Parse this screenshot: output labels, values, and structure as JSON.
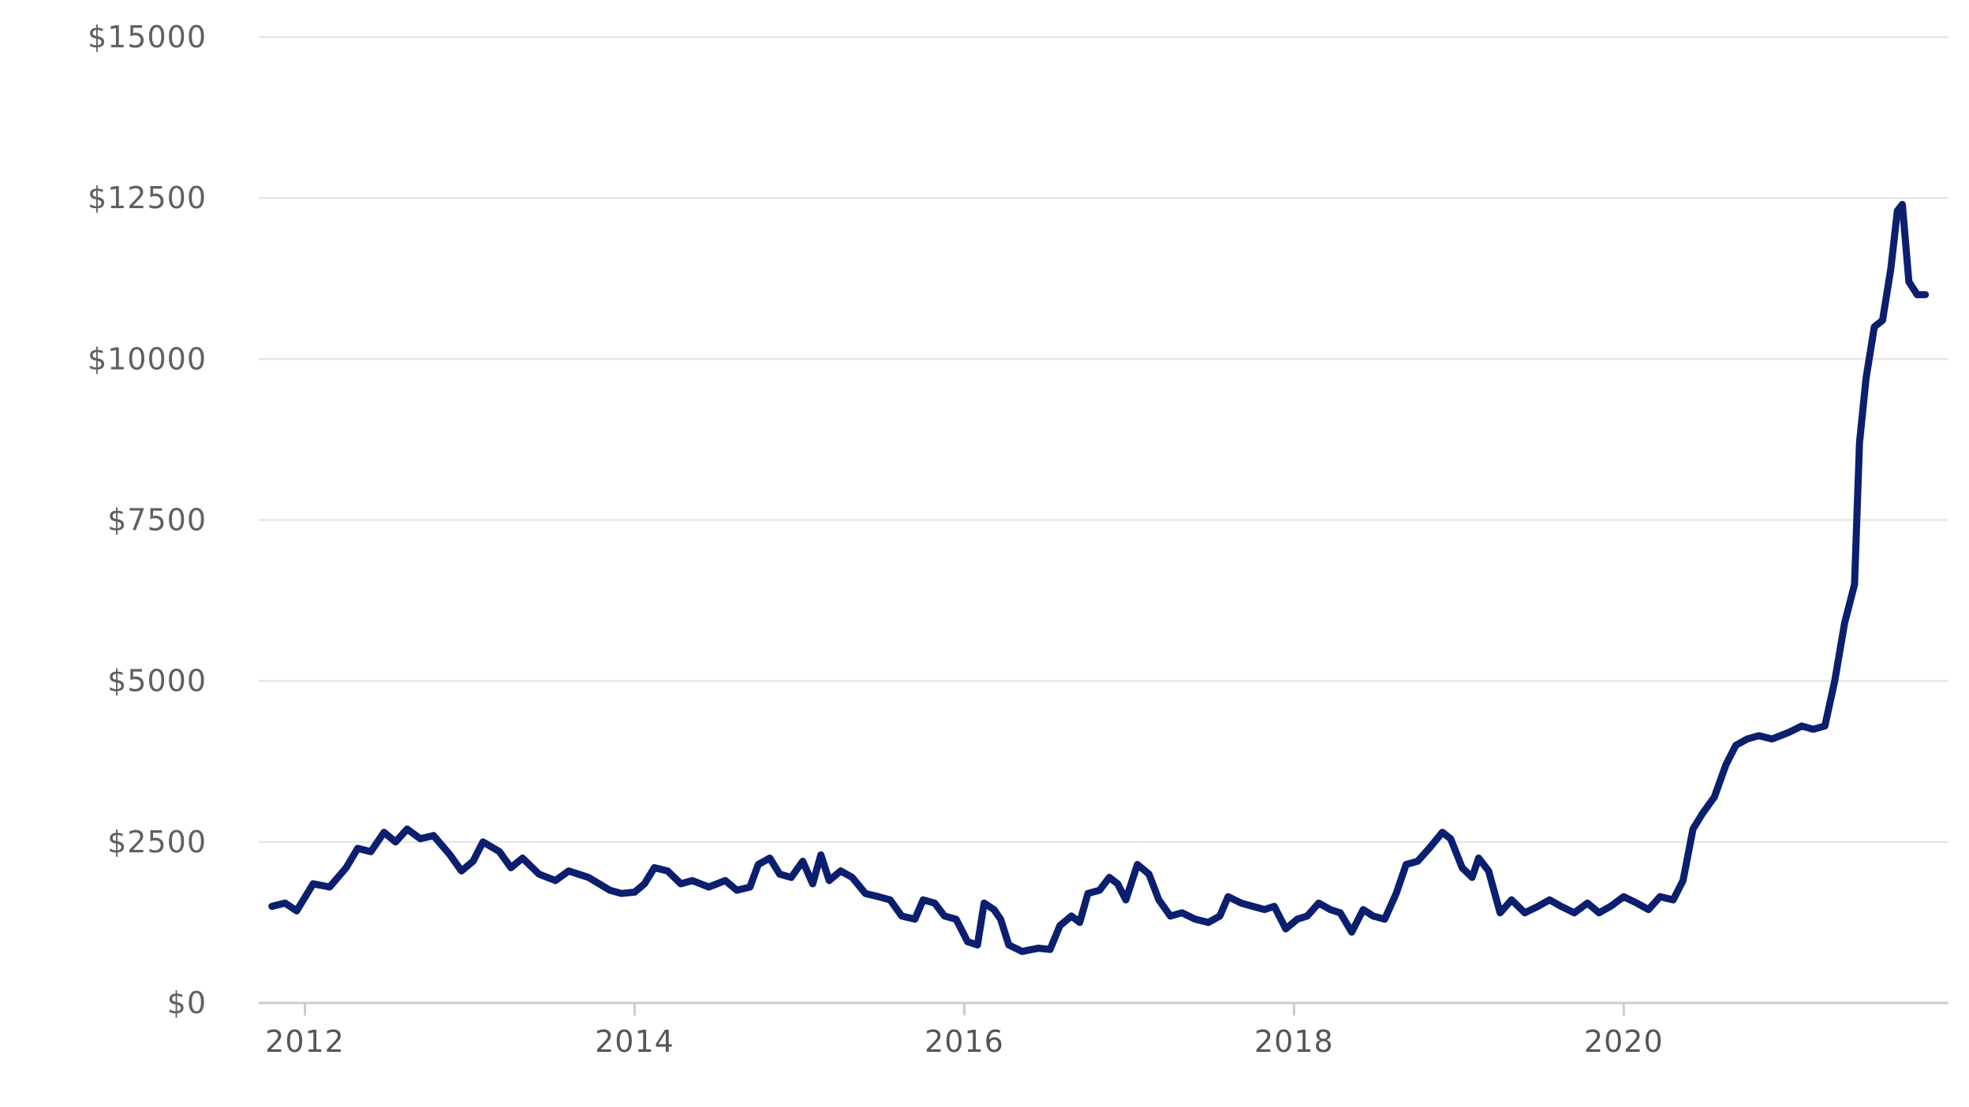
{
  "chart_data": {
    "type": "line",
    "title": "",
    "xlabel": "",
    "ylabel": "",
    "xlim": [
      2011.72,
      2021.97
    ],
    "ylim": [
      0,
      15000
    ],
    "grid": true,
    "legend": "none",
    "y_ticks": [
      {
        "value": 0,
        "label": "$0"
      },
      {
        "value": 2500,
        "label": "$2500"
      },
      {
        "value": 5000,
        "label": "$5000"
      },
      {
        "value": 7500,
        "label": "$7500"
      },
      {
        "value": 10000,
        "label": "$10000"
      },
      {
        "value": 12500,
        "label": "$12500"
      },
      {
        "value": 15000,
        "label": "$15000"
      }
    ],
    "x_ticks": [
      {
        "value": 2012,
        "label": "2012"
      },
      {
        "value": 2014,
        "label": "2014"
      },
      {
        "value": 2016,
        "label": "2016"
      },
      {
        "value": 2018,
        "label": "2018"
      },
      {
        "value": 2020,
        "label": "2020"
      }
    ],
    "series": [
      {
        "color": "#0b1f6e",
        "points": [
          [
            2011.8,
            1500
          ],
          [
            2011.88,
            1550
          ],
          [
            2011.95,
            1430
          ],
          [
            2012.05,
            1850
          ],
          [
            2012.15,
            1800
          ],
          [
            2012.25,
            2100
          ],
          [
            2012.32,
            2400
          ],
          [
            2012.4,
            2350
          ],
          [
            2012.48,
            2650
          ],
          [
            2012.55,
            2500
          ],
          [
            2012.62,
            2700
          ],
          [
            2012.7,
            2550
          ],
          [
            2012.78,
            2600
          ],
          [
            2012.88,
            2300
          ],
          [
            2012.95,
            2050
          ],
          [
            2013.02,
            2200
          ],
          [
            2013.08,
            2500
          ],
          [
            2013.18,
            2350
          ],
          [
            2013.25,
            2100
          ],
          [
            2013.32,
            2250
          ],
          [
            2013.42,
            2000
          ],
          [
            2013.52,
            1900
          ],
          [
            2013.6,
            2050
          ],
          [
            2013.72,
            1950
          ],
          [
            2013.85,
            1750
          ],
          [
            2013.92,
            1700
          ],
          [
            2014.0,
            1720
          ],
          [
            2014.06,
            1850
          ],
          [
            2014.12,
            2100
          ],
          [
            2014.2,
            2050
          ],
          [
            2014.28,
            1850
          ],
          [
            2014.35,
            1900
          ],
          [
            2014.45,
            1800
          ],
          [
            2014.55,
            1900
          ],
          [
            2014.62,
            1750
          ],
          [
            2014.7,
            1800
          ],
          [
            2014.75,
            2150
          ],
          [
            2014.82,
            2250
          ],
          [
            2014.88,
            2000
          ],
          [
            2014.95,
            1950
          ],
          [
            2015.02,
            2200
          ],
          [
            2015.08,
            1850
          ],
          [
            2015.13,
            2300
          ],
          [
            2015.18,
            1900
          ],
          [
            2015.25,
            2050
          ],
          [
            2015.32,
            1950
          ],
          [
            2015.4,
            1700
          ],
          [
            2015.48,
            1650
          ],
          [
            2015.55,
            1600
          ],
          [
            2015.62,
            1350
          ],
          [
            2015.7,
            1300
          ],
          [
            2015.75,
            1600
          ],
          [
            2015.82,
            1550
          ],
          [
            2015.88,
            1350
          ],
          [
            2015.95,
            1300
          ],
          [
            2016.02,
            950
          ],
          [
            2016.08,
            900
          ],
          [
            2016.12,
            1550
          ],
          [
            2016.18,
            1450
          ],
          [
            2016.22,
            1300
          ],
          [
            2016.27,
            900
          ],
          [
            2016.35,
            800
          ],
          [
            2016.45,
            850
          ],
          [
            2016.52,
            830
          ],
          [
            2016.58,
            1200
          ],
          [
            2016.65,
            1350
          ],
          [
            2016.7,
            1250
          ],
          [
            2016.75,
            1700
          ],
          [
            2016.82,
            1750
          ],
          [
            2016.88,
            1950
          ],
          [
            2016.93,
            1850
          ],
          [
            2016.98,
            1600
          ],
          [
            2017.05,
            2150
          ],
          [
            2017.12,
            2000
          ],
          [
            2017.18,
            1600
          ],
          [
            2017.25,
            1350
          ],
          [
            2017.32,
            1400
          ],
          [
            2017.4,
            1300
          ],
          [
            2017.48,
            1250
          ],
          [
            2017.55,
            1350
          ],
          [
            2017.6,
            1650
          ],
          [
            2017.68,
            1550
          ],
          [
            2017.75,
            1500
          ],
          [
            2017.82,
            1450
          ],
          [
            2017.88,
            1500
          ],
          [
            2017.95,
            1150
          ],
          [
            2018.02,
            1300
          ],
          [
            2018.08,
            1350
          ],
          [
            2018.15,
            1550
          ],
          [
            2018.22,
            1450
          ],
          [
            2018.28,
            1400
          ],
          [
            2018.35,
            1100
          ],
          [
            2018.42,
            1450
          ],
          [
            2018.48,
            1350
          ],
          [
            2018.55,
            1300
          ],
          [
            2018.62,
            1700
          ],
          [
            2018.68,
            2150
          ],
          [
            2018.75,
            2200
          ],
          [
            2018.82,
            2400
          ],
          [
            2018.9,
            2650
          ],
          [
            2018.95,
            2550
          ],
          [
            2019.02,
            2100
          ],
          [
            2019.08,
            1950
          ],
          [
            2019.12,
            2250
          ],
          [
            2019.18,
            2050
          ],
          [
            2019.25,
            1400
          ],
          [
            2019.32,
            1600
          ],
          [
            2019.4,
            1400
          ],
          [
            2019.48,
            1500
          ],
          [
            2019.55,
            1600
          ],
          [
            2019.62,
            1500
          ],
          [
            2019.7,
            1400
          ],
          [
            2019.78,
            1550
          ],
          [
            2019.85,
            1400
          ],
          [
            2019.92,
            1500
          ],
          [
            2020.0,
            1650
          ],
          [
            2020.08,
            1550
          ],
          [
            2020.15,
            1450
          ],
          [
            2020.22,
            1650
          ],
          [
            2020.3,
            1600
          ],
          [
            2020.36,
            1900
          ],
          [
            2020.42,
            2700
          ],
          [
            2020.48,
            2950
          ],
          [
            2020.55,
            3200
          ],
          [
            2020.62,
            3700
          ],
          [
            2020.68,
            4000
          ],
          [
            2020.75,
            4100
          ],
          [
            2020.82,
            4150
          ],
          [
            2020.9,
            4100
          ],
          [
            2021.0,
            4200
          ],
          [
            2021.08,
            4300
          ],
          [
            2021.15,
            4250
          ],
          [
            2021.22,
            4300
          ],
          [
            2021.28,
            5000
          ],
          [
            2021.34,
            5900
          ],
          [
            2021.4,
            6500
          ],
          [
            2021.43,
            8700
          ],
          [
            2021.47,
            9700
          ],
          [
            2021.52,
            10500
          ],
          [
            2021.57,
            10600
          ],
          [
            2021.62,
            11400
          ],
          [
            2021.66,
            12300
          ],
          [
            2021.69,
            12400
          ],
          [
            2021.73,
            11200
          ],
          [
            2021.78,
            11000
          ],
          [
            2021.83,
            11000
          ]
        ]
      }
    ]
  }
}
